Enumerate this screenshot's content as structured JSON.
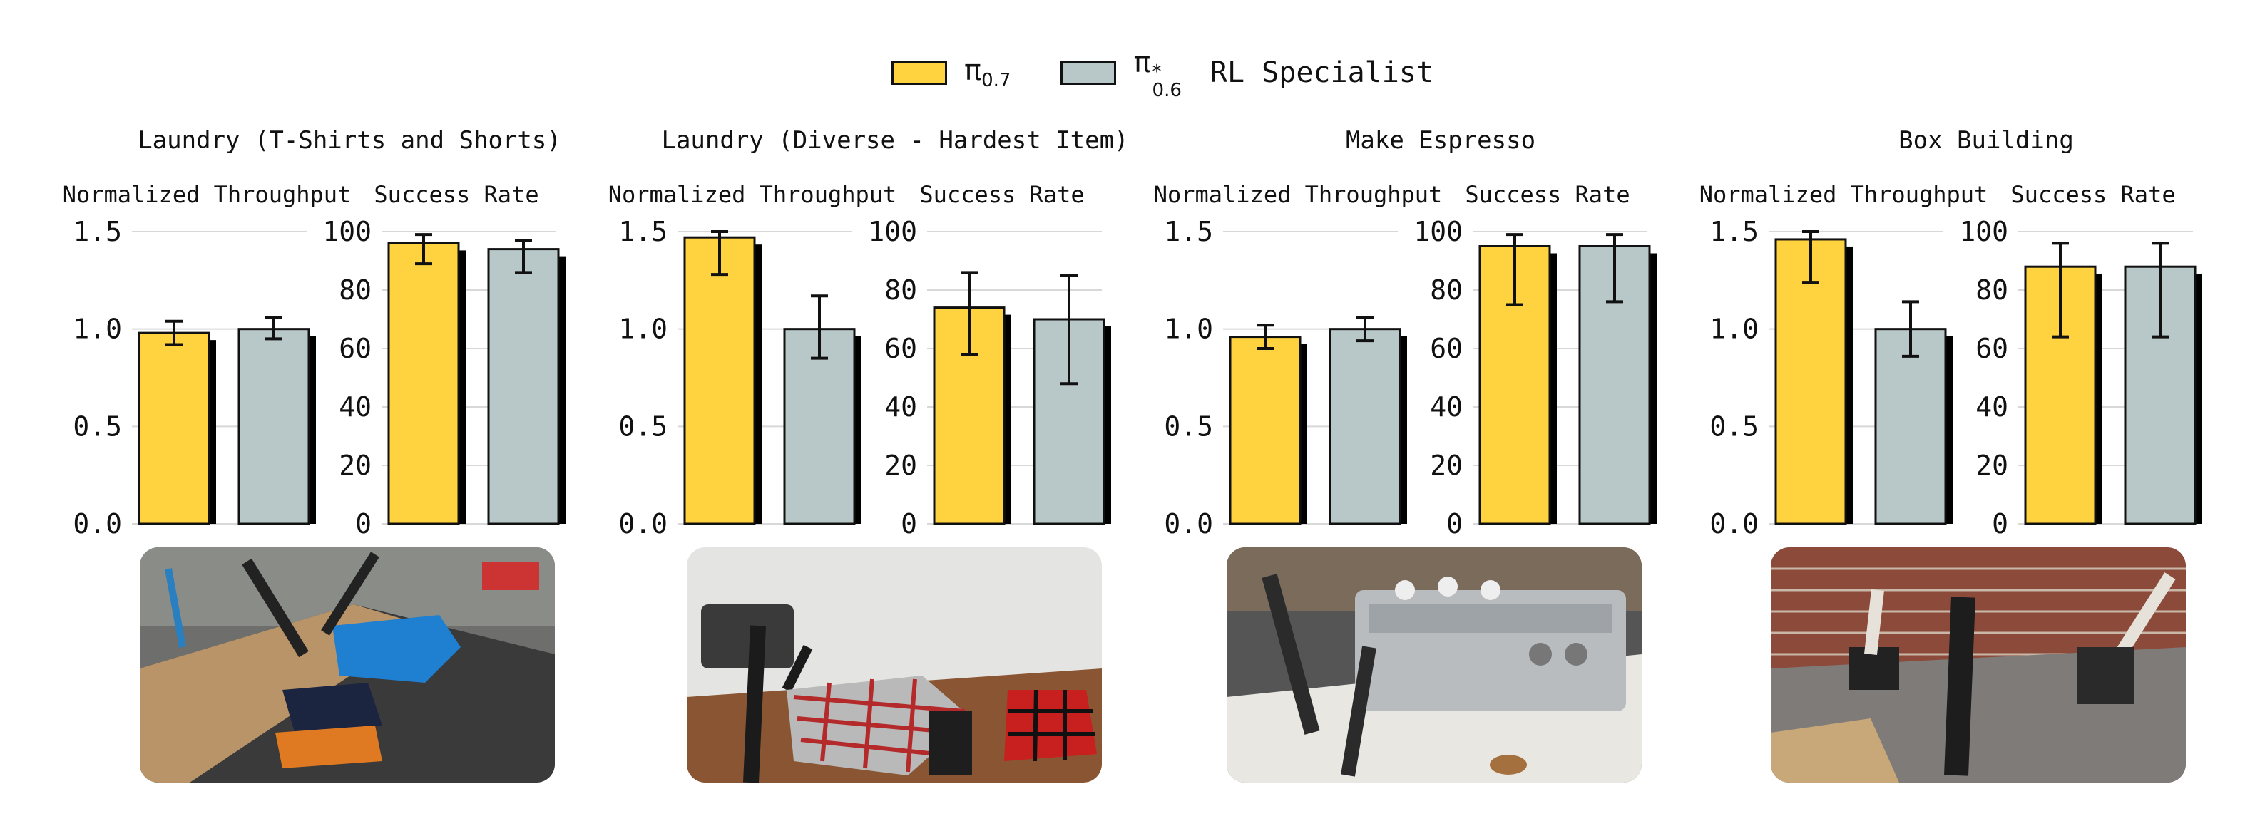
{
  "legend": {
    "items": [
      {
        "symbol": "π",
        "subscript": "0.7",
        "superscript": "",
        "suffix": "",
        "color": "#FFD23F"
      },
      {
        "symbol": "π",
        "subscript": "0.6",
        "superscript": "*",
        "suffix": "RL Specialist",
        "color": "#B8C8C8"
      }
    ]
  },
  "photos": [
    {
      "name": "laundry-tshirts-photo",
      "scene": "robot-arms-folding-blue-tshirt-on-table"
    },
    {
      "name": "laundry-diverse-photo",
      "scene": "robot-arms-with-plaid-shirts-on-wood-table"
    },
    {
      "name": "espresso-photo",
      "scene": "robot-arms-at-espresso-machine"
    },
    {
      "name": "box-building-photo",
      "scene": "robot-arms-building-cardboard-box-brick-wall"
    }
  ],
  "chart_data": [
    {
      "type": "bar",
      "title": "Laundry (T-Shirts and Shorts)",
      "panels": [
        {
          "title": "Normalized Throughput",
          "ylim": [
            0,
            1.5
          ],
          "ticks": [
            "0.0",
            "0.5",
            "1.0",
            "1.5"
          ],
          "tick_values": [
            0,
            0.5,
            1.0,
            1.5
          ],
          "bars": [
            {
              "value": 0.98,
              "err_low": 0.92,
              "err_high": 1.04
            },
            {
              "value": 1.0,
              "err_low": 0.95,
              "err_high": 1.06
            }
          ]
        },
        {
          "title": "Success Rate",
          "ylim": [
            0,
            100
          ],
          "ticks": [
            "0",
            "20",
            "40",
            "60",
            "80",
            "100"
          ],
          "tick_values": [
            0,
            20,
            40,
            60,
            80,
            100
          ],
          "bars": [
            {
              "value": 96,
              "err_low": 89,
              "err_high": 99
            },
            {
              "value": 94,
              "err_low": 86,
              "err_high": 97
            }
          ]
        }
      ]
    },
    {
      "type": "bar",
      "title": "Laundry (Diverse - Hardest Item)",
      "panels": [
        {
          "title": "Normalized Throughput",
          "ylim": [
            0,
            1.5
          ],
          "ticks": [
            "0.0",
            "0.5",
            "1.0",
            "1.5"
          ],
          "tick_values": [
            0,
            0.5,
            1.0,
            1.5
          ],
          "bars": [
            {
              "value": 1.47,
              "err_low": 1.28,
              "err_high": 1.5
            },
            {
              "value": 1.0,
              "err_low": 0.85,
              "err_high": 1.17
            }
          ]
        },
        {
          "title": "Success Rate",
          "ylim": [
            0,
            100
          ],
          "ticks": [
            "0",
            "20",
            "40",
            "60",
            "80",
            "100"
          ],
          "tick_values": [
            0,
            20,
            40,
            60,
            80,
            100
          ],
          "bars": [
            {
              "value": 74,
              "err_low": 58,
              "err_high": 86
            },
            {
              "value": 70,
              "err_low": 48,
              "err_high": 85
            }
          ]
        }
      ]
    },
    {
      "type": "bar",
      "title": "Make Espresso",
      "panels": [
        {
          "title": "Normalized Throughput",
          "ylim": [
            0,
            1.5
          ],
          "ticks": [
            "0.0",
            "0.5",
            "1.0",
            "1.5"
          ],
          "tick_values": [
            0,
            0.5,
            1.0,
            1.5
          ],
          "bars": [
            {
              "value": 0.96,
              "err_low": 0.9,
              "err_high": 1.02
            },
            {
              "value": 1.0,
              "err_low": 0.94,
              "err_high": 1.06
            }
          ]
        },
        {
          "title": "Success Rate",
          "ylim": [
            0,
            100
          ],
          "ticks": [
            "0",
            "20",
            "40",
            "60",
            "80",
            "100"
          ],
          "tick_values": [
            0,
            20,
            40,
            60,
            80,
            100
          ],
          "bars": [
            {
              "value": 95,
              "err_low": 75,
              "err_high": 99
            },
            {
              "value": 95,
              "err_low": 76,
              "err_high": 99
            }
          ]
        }
      ]
    },
    {
      "type": "bar",
      "title": "Box Building",
      "panels": [
        {
          "title": "Normalized Throughput",
          "ylim": [
            0,
            1.5
          ],
          "ticks": [
            "0.0",
            "0.5",
            "1.0",
            "1.5"
          ],
          "tick_values": [
            0,
            0.5,
            1.0,
            1.5
          ],
          "bars": [
            {
              "value": 1.46,
              "err_low": 1.24,
              "err_high": 1.5
            },
            {
              "value": 1.0,
              "err_low": 0.86,
              "err_high": 1.14
            }
          ]
        },
        {
          "title": "Success Rate",
          "ylim": [
            0,
            100
          ],
          "ticks": [
            "0",
            "20",
            "40",
            "60",
            "80",
            "100"
          ],
          "tick_values": [
            0,
            20,
            40,
            60,
            80,
            100
          ],
          "bars": [
            {
              "value": 88,
              "err_low": 64,
              "err_high": 96
            },
            {
              "value": 88,
              "err_low": 64,
              "err_high": 96
            }
          ]
        }
      ]
    }
  ]
}
